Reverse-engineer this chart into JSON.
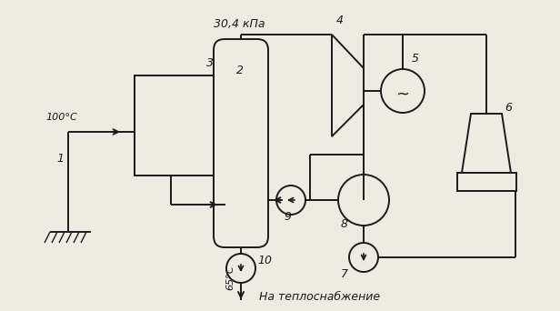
{
  "bg_color": "#f0ebe0",
  "line_color": "#1a1a1a",
  "labels": {
    "temp_100": "100°С",
    "label_1": "1",
    "label_2": "2",
    "label_3": "3",
    "label_4": "4",
    "label_5": "5",
    "label_6": "6",
    "label_7": "7",
    "label_8": "8",
    "label_9": "9",
    "label_10": "10",
    "pressure": "30,4 кПа",
    "temp_65": "65°С",
    "heat_supply": "На теплоснабжение"
  }
}
